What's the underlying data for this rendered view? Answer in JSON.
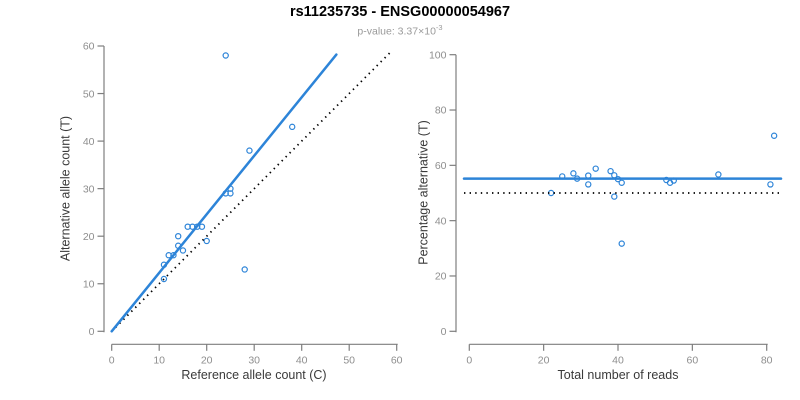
{
  "colors": {
    "accent_blue": "#2d84d8",
    "axis_line": "#7e7e7e",
    "tick_label": "#8e8e8e",
    "axis_title": "#3a3a3a",
    "reference_line": "#000000",
    "title": "#000000",
    "subtitle": "#9a9a9a"
  },
  "header": {
    "title": "rs11235735 - ENSG00000054967",
    "pvalue_label": "p-value:",
    "pvalue_mantissa": "3.37×10",
    "pvalue_exponent": "-3"
  },
  "chart_data": {
    "figure_title": "rs11235735 - ENSG00000054967",
    "figure_subtitle": "p-value: 3.37×10⁻³",
    "charts": [
      {
        "id": "allele-counts",
        "type": "scatter",
        "xlabel": "Reference allele count (C)",
        "ylabel": "Alternative allele count (T)",
        "xlim": [
          0,
          60
        ],
        "ylim": [
          0,
          60
        ],
        "xticks": [
          0,
          10,
          20,
          30,
          40,
          50,
          60
        ],
        "yticks": [
          0,
          10,
          20,
          30,
          40,
          50,
          60
        ],
        "grid": false,
        "points": [
          [
            24,
            58
          ],
          [
            38,
            43
          ],
          [
            29,
            38
          ],
          [
            25,
            30
          ],
          [
            25,
            29
          ],
          [
            24,
            29
          ],
          [
            16,
            22
          ],
          [
            17,
            22
          ],
          [
            18,
            22
          ],
          [
            19,
            22
          ],
          [
            14,
            20
          ],
          [
            20,
            19
          ],
          [
            14,
            18
          ],
          [
            15,
            17
          ],
          [
            12,
            16
          ],
          [
            13,
            16
          ],
          [
            11,
            14
          ],
          [
            28,
            13
          ],
          [
            11,
            11
          ]
        ],
        "fit_line": {
          "style": "solid",
          "x1": 0,
          "y1": 0,
          "x2": 47.3,
          "y2": 58.2
        },
        "reference_line": {
          "style": "dotted",
          "x1": 0.8,
          "y1": 0.8,
          "x2": 58.5,
          "y2": 58.5
        }
      },
      {
        "id": "percentage-alternative",
        "type": "scatter",
        "xlabel": "Total number of reads",
        "ylabel": "Percentage alternative (T)",
        "xlim": [
          0,
          80
        ],
        "ylim": [
          0,
          100
        ],
        "xticks": [
          0,
          20,
          40,
          60,
          80
        ],
        "yticks": [
          0,
          20,
          40,
          60,
          80,
          100
        ],
        "grid": false,
        "points": [
          [
            82,
            70.7
          ],
          [
            81,
            53.1
          ],
          [
            67,
            56.7
          ],
          [
            55,
            54.5
          ],
          [
            54,
            53.7
          ],
          [
            53,
            54.7
          ],
          [
            38,
            57.9
          ],
          [
            39,
            56.4
          ],
          [
            40,
            55.0
          ],
          [
            41,
            53.7
          ],
          [
            34,
            58.8
          ],
          [
            39,
            48.7
          ],
          [
            32,
            56.3
          ],
          [
            32,
            53.1
          ],
          [
            28,
            57.1
          ],
          [
            29,
            55.2
          ],
          [
            25,
            56.0
          ],
          [
            41,
            31.7
          ],
          [
            22,
            50.0
          ]
        ],
        "fit_line": {
          "style": "solid",
          "y": 55.2
        },
        "reference_line": {
          "style": "dotted",
          "y": 50
        }
      }
    ]
  }
}
